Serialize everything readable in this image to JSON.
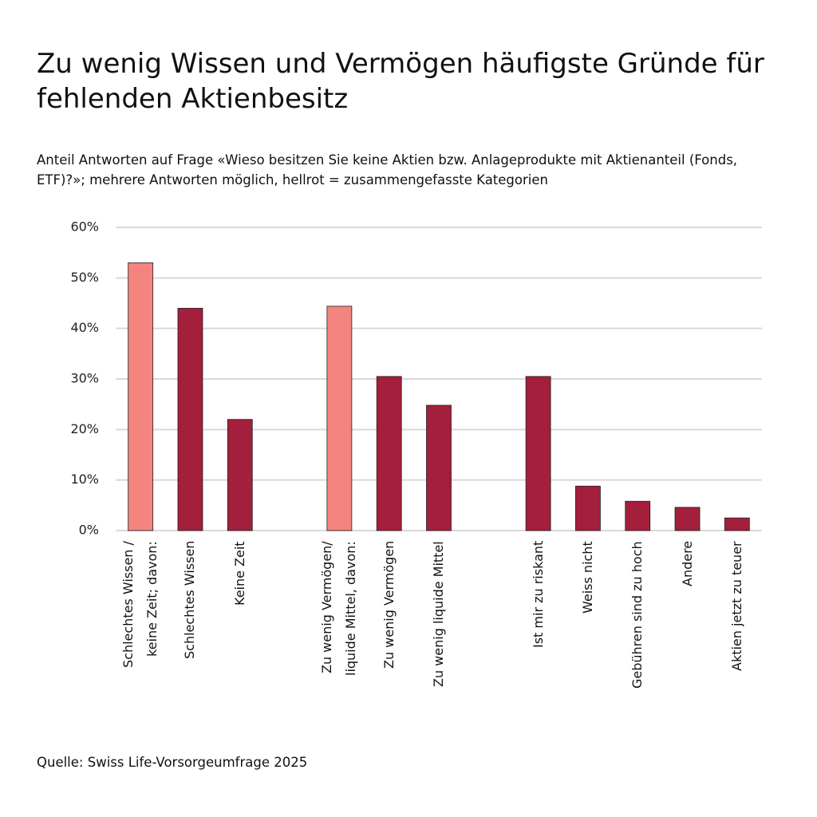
{
  "chart_data": {
    "type": "bar",
    "title": "Zu wenig Wissen und Vermögen häufigste Gründe für fehlenden Aktienbesitz",
    "subtitle": "Anteil Antworten auf Frage «Wieso besitzen Sie keine Aktien bzw. Anlageprodukte mit Aktienanteil (Fonds, ETF)?»; mehrere Antworten möglich, hellrot = zusammengefasste Kategorien",
    "source": "Quelle: Swiss Life-Vorsorgeumfrage 2025",
    "categories": [
      "Schlechtes Wissen /\nkeine Zeit; davon:",
      "Schlechtes Wissen",
      "Keine Zeit",
      null,
      "Zu wenig Vermögen/\nliquide Mittel, davon:",
      "Zu wenig Vermögen",
      "Zu wenig liquide Mittel",
      null,
      "Ist mir zu riskant",
      "Weiss nicht",
      "Gebühren sind zu hoch",
      "Andere",
      "Aktien jetzt zu teuer"
    ],
    "values": [
      53,
      44,
      22,
      null,
      44.4,
      30.5,
      24.8,
      null,
      30.5,
      8.8,
      5.8,
      4.6,
      2.5
    ],
    "colors": [
      "#f4847f",
      "#a31f3c",
      "#a31f3c",
      null,
      "#f4847f",
      "#a31f3c",
      "#a31f3c",
      null,
      "#a31f3c",
      "#a31f3c",
      "#a31f3c",
      "#a31f3c",
      "#a31f3c"
    ],
    "ylim": [
      0,
      60
    ],
    "yticks": [
      {
        "value": 0,
        "label": "0%"
      },
      {
        "value": 10,
        "label": "10%"
      },
      {
        "value": 20,
        "label": "20%"
      },
      {
        "value": 30,
        "label": "30%"
      },
      {
        "value": 40,
        "label": "40%"
      },
      {
        "value": 50,
        "label": "50%"
      },
      {
        "value": 60,
        "label": "60%"
      }
    ],
    "grid": true
  }
}
